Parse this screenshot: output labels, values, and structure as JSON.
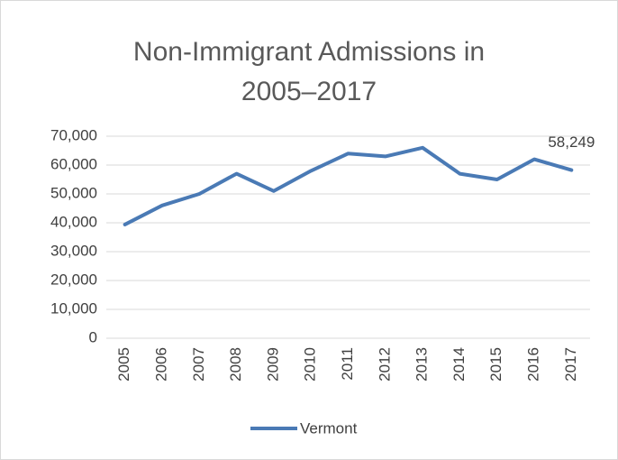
{
  "chart_data": {
    "type": "line",
    "title": "Non-Immigrant Admissions in 2005–2017",
    "categories": [
      "2005",
      "2006",
      "2007",
      "2008",
      "2009",
      "2010",
      "2011",
      "2012",
      "2013",
      "2014",
      "2015",
      "2016",
      "2017"
    ],
    "series": [
      {
        "name": "Vermont",
        "color": "#4a7ab5",
        "values": [
          39400,
          46000,
          50000,
          57000,
          51000,
          58000,
          64000,
          63000,
          66000,
          57000,
          55000,
          62000,
          58249
        ],
        "value_labels": [
          null,
          null,
          null,
          null,
          null,
          null,
          null,
          null,
          null,
          null,
          null,
          null,
          "58,249"
        ]
      }
    ],
    "ylim": [
      0,
      70000
    ],
    "yticks": [
      0,
      {
        "value": 10000,
        "label": "10,000"
      },
      {
        "value": 20000,
        "label": "20,000"
      },
      {
        "value": 30000,
        "label": "30,000"
      },
      {
        "value": 40000,
        "label": "40,000"
      },
      {
        "value": 50000,
        "label": "50,000"
      },
      {
        "value": 60000,
        "label": "60,000"
      },
      {
        "value": 70000,
        "label": "70,000"
      }
    ],
    "grid": true,
    "legend": "bottom"
  }
}
